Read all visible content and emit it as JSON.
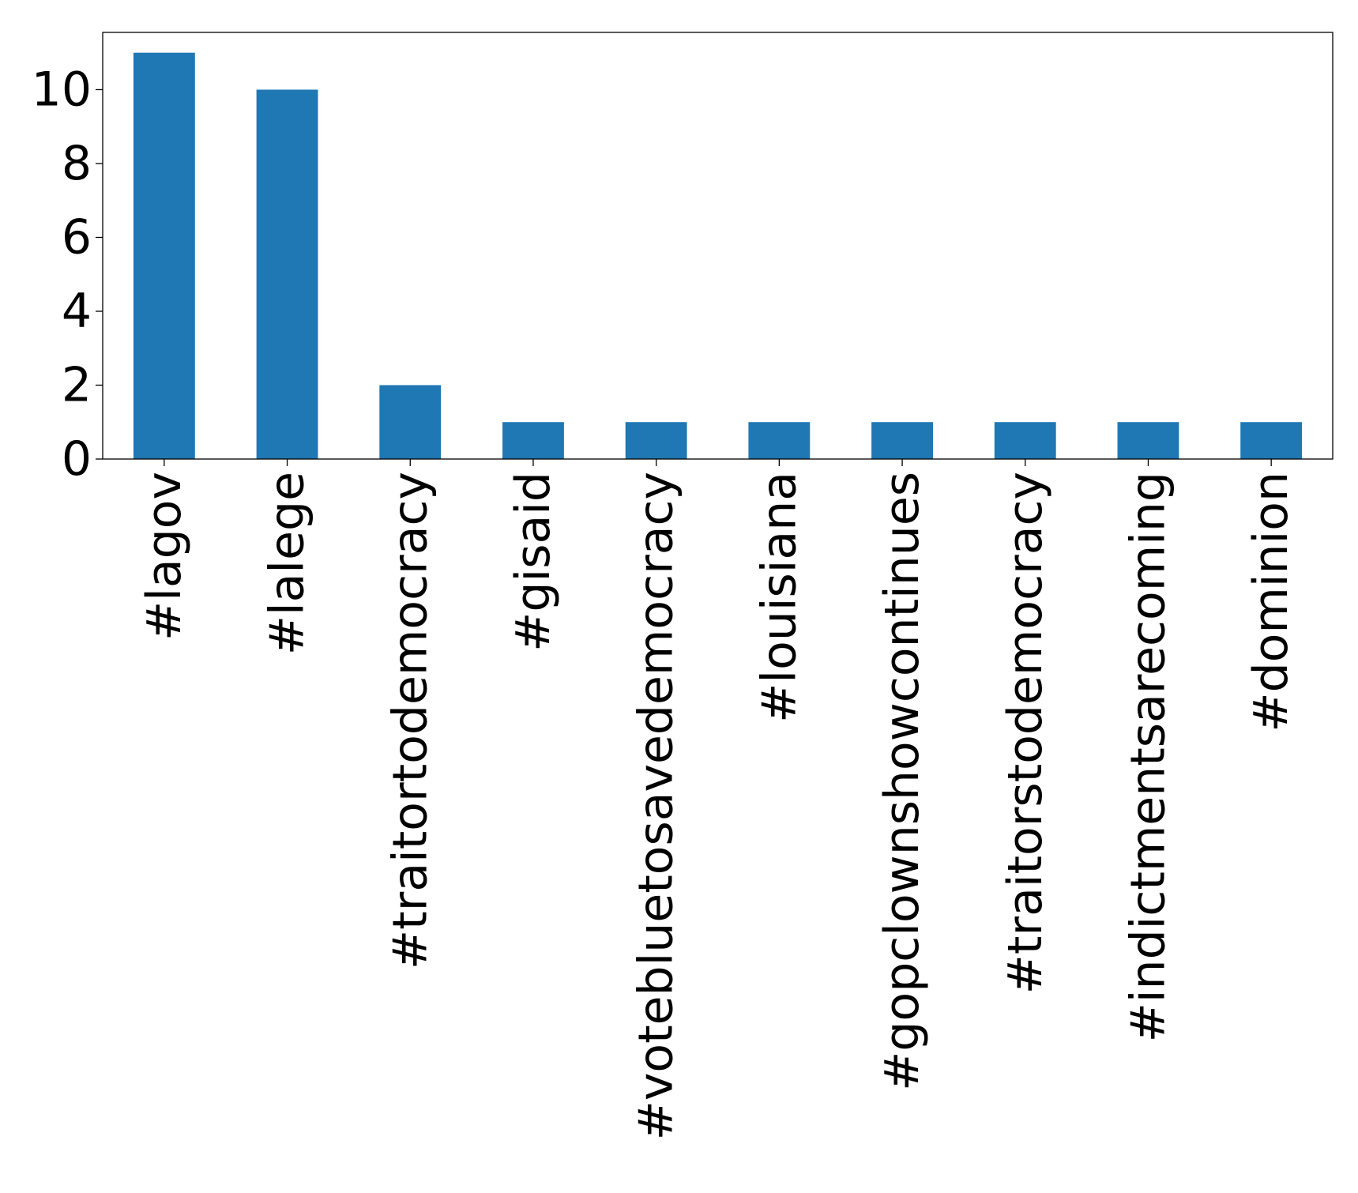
{
  "chart_data": {
    "type": "bar",
    "title": "",
    "xlabel": "",
    "ylabel": "",
    "categories": [
      "#lagov",
      "#lalege",
      "#traitortodemocracy",
      "#gisaid",
      "#votebluetosavedemocracy",
      "#louisiana",
      "#gopclownshowcontinues",
      "#traitorstodemocracy",
      "#indictmentsarecoming",
      "#dominion"
    ],
    "values": [
      11,
      10,
      2,
      1,
      1,
      1,
      1,
      1,
      1,
      1
    ],
    "ylim": [
      0,
      11.55
    ],
    "yticks": [
      0,
      2,
      4,
      6,
      8,
      10
    ],
    "grid": false,
    "legend": "none",
    "colors": {
      "bar": "#1f77b4",
      "axis": "#000000",
      "background": "#ffffff"
    }
  }
}
